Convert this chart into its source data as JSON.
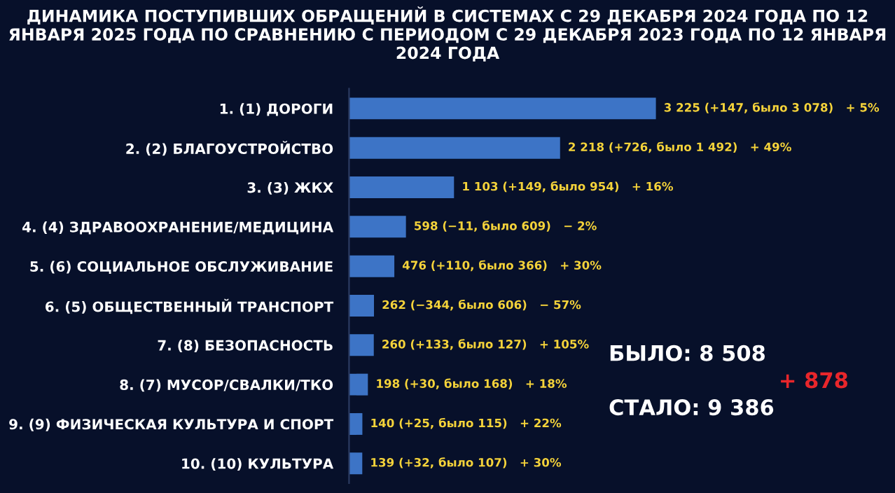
{
  "chart_data": {
    "type": "bar",
    "orientation": "horizontal",
    "title": "ДИНАМИКА ПОСТУПИВШИХ ОБРАЩЕНИЙ В СИСТЕМАХ С 29 ДЕКАБРЯ 2024 ГОДА ПО 12 ЯНВАРЯ 2025 ГОДА ПО СРАВНЕНИЮ С ПЕРИОДОМ С 29 ДЕКАБРЯ 2023 ГОДА ПО 12 ЯНВАРЯ 2024 ГОДА",
    "categories": [
      "1. (1) ДОРОГИ",
      "2. (2) БЛАГОУСТРОЙСТВО",
      "3. (3) ЖКХ",
      "4. (4) ЗДРАВООХРАНЕНИЕ/МЕДИЦИНА",
      "5. (6) СОЦИАЛЬНОЕ ОБСЛУЖИВАНИЕ",
      "6. (5) ОБЩЕСТВЕННЫЙ ТРАНСПОРТ",
      "7. (8) БЕЗОПАСНОСТЬ",
      "8. (7) МУСОР/СВАЛКИ/ТКО",
      "9. (9) ФИЗИЧЕСКАЯ КУЛЬТУРА И СПОРТ",
      "10. (10) КУЛЬТУРА"
    ],
    "values": [
      3225,
      2218,
      1103,
      598,
      476,
      262,
      260,
      198,
      140,
      139
    ],
    "value_labels": [
      "3 225 (+147, было 3 078)   + 5%",
      "2 218 (+726, было 1 492)   + 49%",
      "1 103 (+149, было 954)   + 16%",
      "598 (−11, было 609)   − 2%",
      "476 (+110, было 366)   + 30%",
      "262 (−344, было 606)   − 57%",
      "260 (+133, было 127)   + 105%",
      "198 (+30, было 168)   + 18%",
      "140 (+25, было 115)   + 22%",
      "139 (+32, было 107)   + 30%"
    ],
    "color": "#3d74c6",
    "tick_labels": "y",
    "grid": false,
    "legend": false,
    "annotations": [
      "БЫЛО: 8 508",
      "СТАЛО: 9 386",
      "+ 878"
    ]
  }
}
